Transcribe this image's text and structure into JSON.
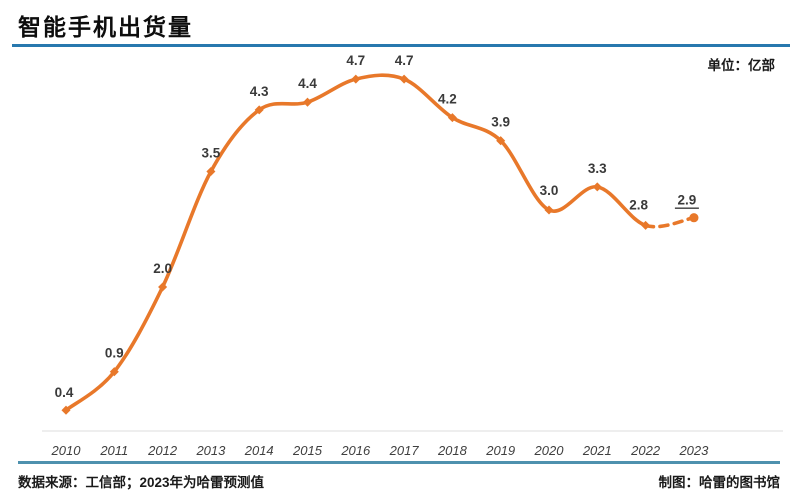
{
  "title": "智能手机出货量",
  "unit_label": "单位：亿部",
  "footer": {
    "source": "数据来源：工信部；2023年为哈雷预测值",
    "credit": "制图：哈雷的图书馆"
  },
  "colors": {
    "line": "#E8782A",
    "title_rule": "#2878AE",
    "footer_rule": "#4E91AE",
    "value_label": "#3a3a3a",
    "year_label": "#404040",
    "axis_line": "#e9e9e9"
  },
  "chart_data": {
    "type": "line",
    "title": "智能手机出货量",
    "ylabel": "亿部",
    "categories": [
      "2010",
      "2011",
      "2012",
      "2013",
      "2014",
      "2015",
      "2016",
      "2017",
      "2018",
      "2019",
      "2020",
      "2021",
      "2022",
      "2023"
    ],
    "series": [
      {
        "name": "智能手机出货量",
        "values": [
          0.4,
          0.9,
          2.0,
          3.5,
          4.3,
          4.4,
          4.7,
          4.7,
          4.2,
          3.9,
          3.0,
          3.3,
          2.8,
          2.9
        ]
      }
    ],
    "ylim": [
      0,
      5
    ],
    "grid": false,
    "legend": false,
    "data_labels_shown": true,
    "forecast": {
      "dashed_from_category": "2022",
      "dashed_to_category": "2023",
      "last_label_underlined": true
    }
  }
}
